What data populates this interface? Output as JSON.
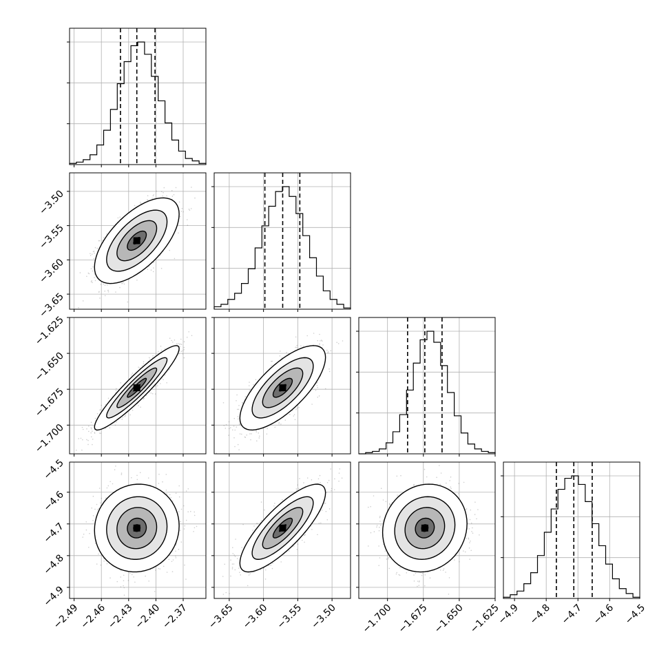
{
  "chart_data": {
    "type": "corner",
    "grid": true,
    "colors": {
      "line": "#000000",
      "grid": "#b0b0b0",
      "scatter": "#6f6f6f"
    },
    "dims": [
      {
        "key": "p0",
        "ticks": [
          -2.49,
          -2.46,
          -2.43,
          -2.4,
          -2.37
        ],
        "tick_labels": [
          "−2.49",
          "−2.46",
          "−2.43",
          "−2.40",
          "−2.37"
        ],
        "range": [
          -2.495,
          -2.345
        ],
        "quantiles": [
          -2.439,
          -2.421,
          -2.401
        ],
        "hist_counts": [
          1,
          2,
          4,
          8,
          16,
          28,
          45,
          66,
          84,
          97,
          100,
          90,
          72,
          52,
          34,
          20,
          11,
          5,
          3,
          1
        ]
      },
      {
        "key": "p1",
        "ticks": [
          -3.65,
          -3.6,
          -3.55,
          -3.5
        ],
        "tick_labels": [
          "−3.65",
          "−3.60",
          "−3.55",
          "−3.50"
        ],
        "range": [
          -3.672,
          -3.473
        ],
        "quantiles": [
          -3.598,
          -3.572,
          -3.547
        ],
        "hist_counts": [
          2,
          4,
          8,
          13,
          21,
          33,
          50,
          68,
          84,
          96,
          100,
          92,
          78,
          60,
          42,
          27,
          15,
          8,
          4,
          1
        ]
      },
      {
        "key": "p2",
        "ticks": [
          -1.7,
          -1.675,
          -1.65,
          -1.625
        ],
        "tick_labels": [
          "−1.700",
          "−1.675",
          "−1.650",
          "−1.625"
        ],
        "range": [
          -1.72,
          -1.625
        ],
        "quantiles": [
          -1.686,
          -1.674,
          -1.662
        ],
        "hist_counts": [
          0,
          1,
          2,
          4,
          9,
          18,
          32,
          52,
          74,
          93,
          100,
          91,
          72,
          50,
          31,
          17,
          8,
          4,
          2,
          1
        ]
      },
      {
        "key": "p3",
        "ticks": [
          -4.9,
          -4.8,
          -4.7,
          -4.6,
          -4.5
        ],
        "tick_labels": [
          "−4.9",
          "−4.8",
          "−4.7",
          "−4.6",
          "−4.5"
        ],
        "range": [
          -4.935,
          -4.505
        ],
        "quantiles": [
          -4.768,
          -4.713,
          -4.655
        ],
        "hist_counts": [
          1,
          3,
          6,
          12,
          21,
          35,
          54,
          73,
          89,
          98,
          100,
          93,
          79,
          61,
          43,
          28,
          16,
          8,
          4,
          1
        ]
      }
    ],
    "correlations": {
      "1-0": 0.62,
      "2-0": 0.93,
      "2-1": 0.72,
      "3-0": 0.05,
      "3-1": 0.8,
      "3-2": 0.1
    }
  }
}
